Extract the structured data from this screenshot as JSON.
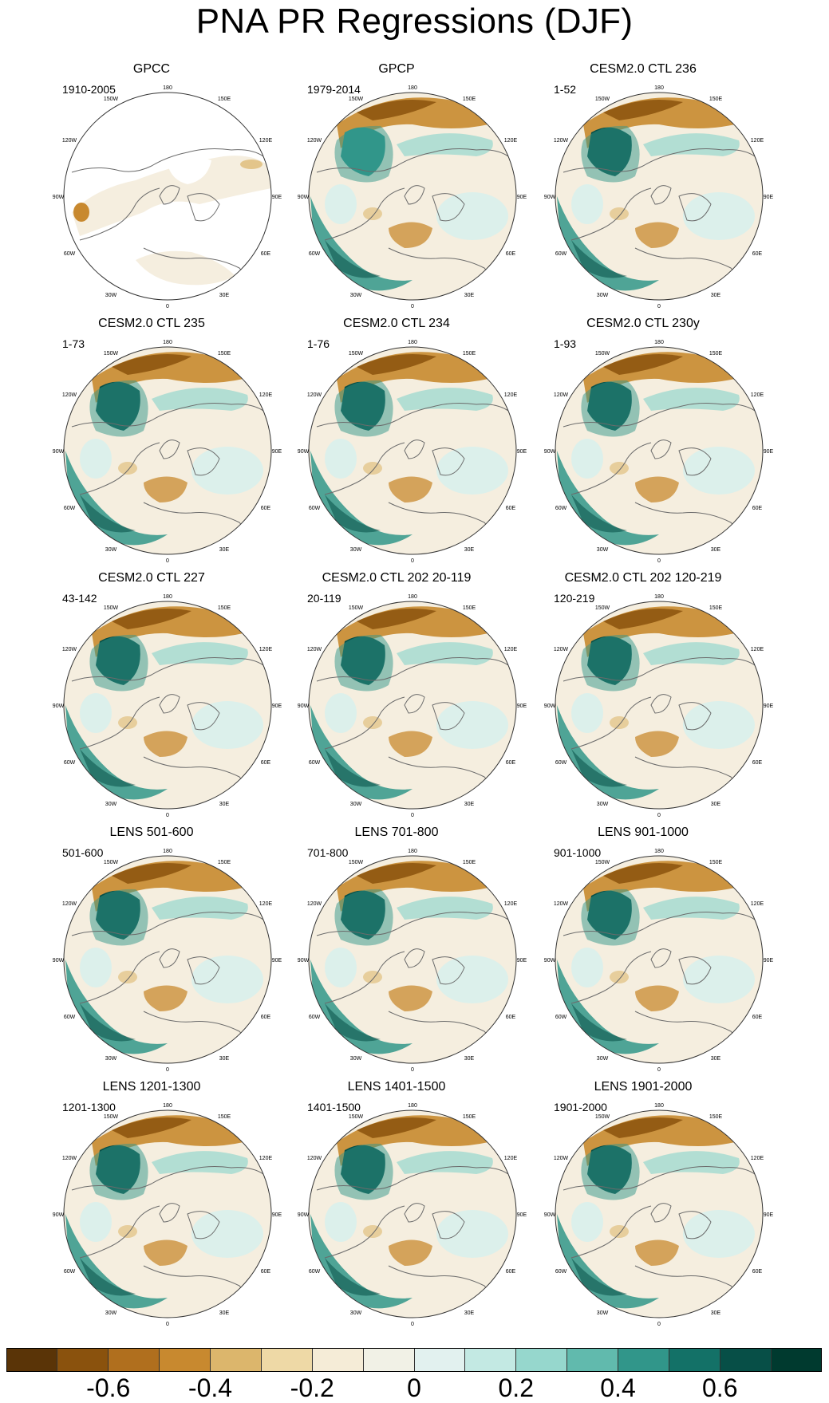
{
  "title": "PNA PR Regressions (DJF)",
  "panels": [
    {
      "title": "GPCC",
      "period": "1910-2005",
      "style": "obs_gpcc"
    },
    {
      "title": "GPCP",
      "period": "1979-2014",
      "style": "obs_gpcp"
    },
    {
      "title": "CESM2.0 CTL 236",
      "period": "1-52",
      "style": "model"
    },
    {
      "title": "CESM2.0 CTL 235",
      "period": "1-73",
      "style": "model"
    },
    {
      "title": "CESM2.0 CTL 234",
      "period": "1-76",
      "style": "model"
    },
    {
      "title": "CESM2.0 CTL 230y",
      "period": "1-93",
      "style": "model"
    },
    {
      "title": "CESM2.0 CTL 227",
      "period": "43-142",
      "style": "model"
    },
    {
      "title": "CESM2.0 CTL 202 20-119",
      "period": "20-119",
      "style": "model"
    },
    {
      "title": "CESM2.0 CTL 202 120-219",
      "period": "120-219",
      "style": "model"
    },
    {
      "title": "LENS 501-600",
      "period": "501-600",
      "style": "model"
    },
    {
      "title": "LENS 701-800",
      "period": "701-800",
      "style": "model"
    },
    {
      "title": "LENS 901-1000",
      "period": "901-1000",
      "style": "model"
    },
    {
      "title": "LENS 1201-1300",
      "period": "1201-1300",
      "style": "model"
    },
    {
      "title": "LENS 1401-1500",
      "period": "1401-1500",
      "style": "model"
    },
    {
      "title": "LENS 1901-2000",
      "period": "1901-2000",
      "style": "model"
    }
  ],
  "lon_labels": [
    "180",
    "150E",
    "120E",
    "90E",
    "60E",
    "30E",
    "0",
    "30W",
    "60W",
    "90W",
    "120W",
    "150W"
  ],
  "colorbar": {
    "colors": [
      "#5a3407",
      "#8a520d",
      "#b06f1e",
      "#c8892f",
      "#dcb66c",
      "#eed9a6",
      "#f5ecd7",
      "#f1f1e6",
      "#e2f1ef",
      "#c3e9e3",
      "#96d7cd",
      "#61baad",
      "#31968a",
      "#137167",
      "#074f47",
      "#003a2f"
    ],
    "tick_labels": [
      "-0.6",
      "-0.4",
      "-0.2",
      "0",
      "0.2",
      "0.4",
      "0.6"
    ],
    "tick_values": [
      -0.6,
      -0.4,
      -0.2,
      0,
      0.2,
      0.4,
      0.6
    ],
    "range": [
      -0.8,
      0.8
    ]
  },
  "colors": {
    "land_fill": "#f5eedf",
    "missing": "#ffffff",
    "coast": "#6b6b6b",
    "dry_strong": "#8a520d",
    "dry_mid": "#c8892f",
    "dry_light": "#e3c58b",
    "wet_strong": "#074f47",
    "wet_mid": "#31968a",
    "wet_light": "#96d7cd",
    "wet_faint": "#d9f0ec"
  }
}
